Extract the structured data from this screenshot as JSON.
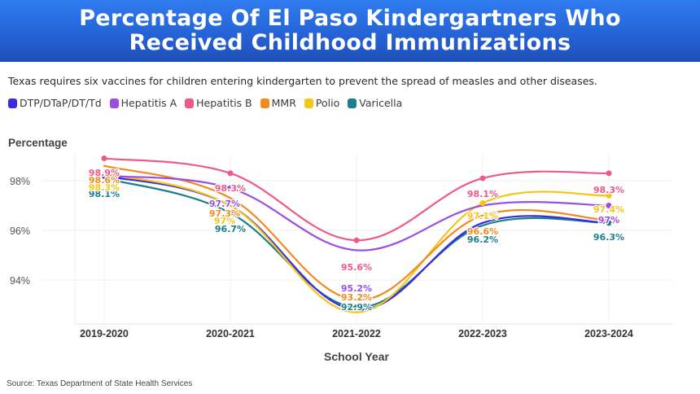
{
  "banner": {
    "title_line1": "Percentage Of El Paso Kindergartners Who",
    "title_line2": "Received Childhood Immunizations"
  },
  "subtitle": "Texas requires six vaccines for children entering kindergarten to prevent the spread of measles and other diseases.",
  "source": "Source: Texas Department of State Health Services",
  "chart_data": {
    "type": "line",
    "title": "Percentage Of El Paso Kindergartners Who Received Childhood Immunizations",
    "subtitle": "Texas requires six vaccines for children entering kindergarten to prevent the spread of measles and other diseases.",
    "xlabel": "School Year",
    "ylabel": "Percentage",
    "categories": [
      "2019-2020",
      "2020-2021",
      "2021-2022",
      "2022-2023",
      "2023-2024"
    ],
    "yticks": [
      94,
      96,
      98
    ],
    "ytick_labels": [
      "94%",
      "96%",
      "98%"
    ],
    "ylim": [
      92.4,
      99.1
    ],
    "grid": true,
    "legend_position": "top-left",
    "series": [
      {
        "name": "DTP/DTaP/DT/Td",
        "color": "#3b2be0",
        "values": [
          98.2,
          97.0,
          92.8,
          96.3,
          96.3
        ],
        "labels": [
          "",
          "",
          "",
          "",
          ""
        ]
      },
      {
        "name": "Hepatitis A",
        "color": "#9b4fe0",
        "values": [
          98.2,
          97.7,
          95.2,
          97.0,
          97.0
        ],
        "labels": [
          "",
          "97.7%",
          "95.2%",
          "",
          "97%"
        ]
      },
      {
        "name": "Hepatitis B",
        "color": "#ee5a86",
        "values": [
          98.9,
          98.3,
          95.6,
          98.1,
          98.3
        ],
        "labels": [
          "98.9%",
          "98.3%",
          "95.6%",
          "98.1%",
          "98.3%"
        ]
      },
      {
        "name": "MMR",
        "color": "#f28a1e",
        "values": [
          98.6,
          97.3,
          93.2,
          96.6,
          96.4
        ],
        "labels": [
          "98.6%",
          "97.3%",
          "93.2%",
          "96.6%",
          ""
        ]
      },
      {
        "name": "Polio",
        "color": "#f5c518",
        "values": [
          98.3,
          97.0,
          92.7,
          97.1,
          97.4
        ],
        "labels": [
          "98.3%",
          "97%",
          "",
          "97.1%",
          "97.4%"
        ]
      },
      {
        "name": "Varicella",
        "color": "#1b7f8c",
        "values": [
          98.1,
          96.7,
          92.9,
          96.2,
          96.3
        ],
        "labels": [
          "98.1%",
          "96.7%",
          "92.9%",
          "96.2%",
          "96.3%"
        ]
      }
    ]
  }
}
